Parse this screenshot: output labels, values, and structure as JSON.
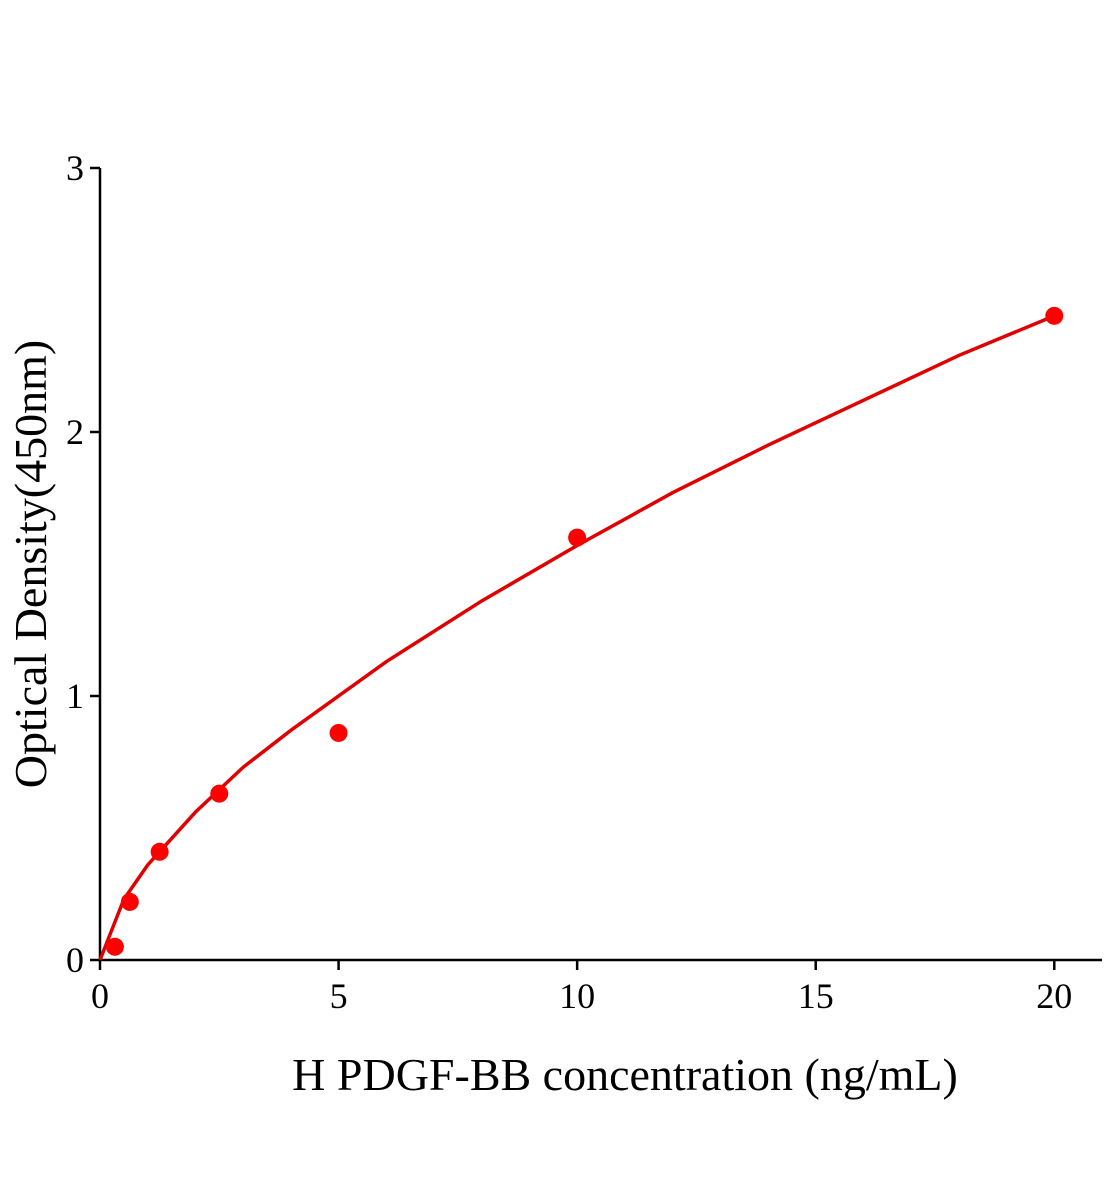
{
  "chart_data": {
    "type": "scatter",
    "x_label": "H PDGF-BB concentration (ng/mL)",
    "y_label": "Optical Density(450nm)",
    "x": [
      0.3125,
      0.625,
      1.25,
      2.5,
      5,
      10,
      20
    ],
    "values": [
      0.05,
      0.22,
      0.41,
      0.63,
      0.86,
      1.6,
      2.44
    ],
    "color": "#ff0000",
    "curve": {
      "x": [
        0,
        0.5,
        1,
        2,
        3,
        4,
        6,
        8,
        10,
        12,
        14,
        16,
        18,
        20
      ],
      "values": [
        0,
        0.23,
        0.36,
        0.56,
        0.73,
        0.87,
        1.13,
        1.36,
        1.57,
        1.77,
        1.95,
        2.12,
        2.29,
        2.44
      ],
      "color": "#e00000"
    },
    "xlim": [
      0,
      21
    ],
    "ylim": [
      0,
      3
    ],
    "xticks": [
      0,
      5,
      10,
      15,
      20
    ],
    "yticks": [
      0,
      1,
      2,
      3
    ]
  }
}
